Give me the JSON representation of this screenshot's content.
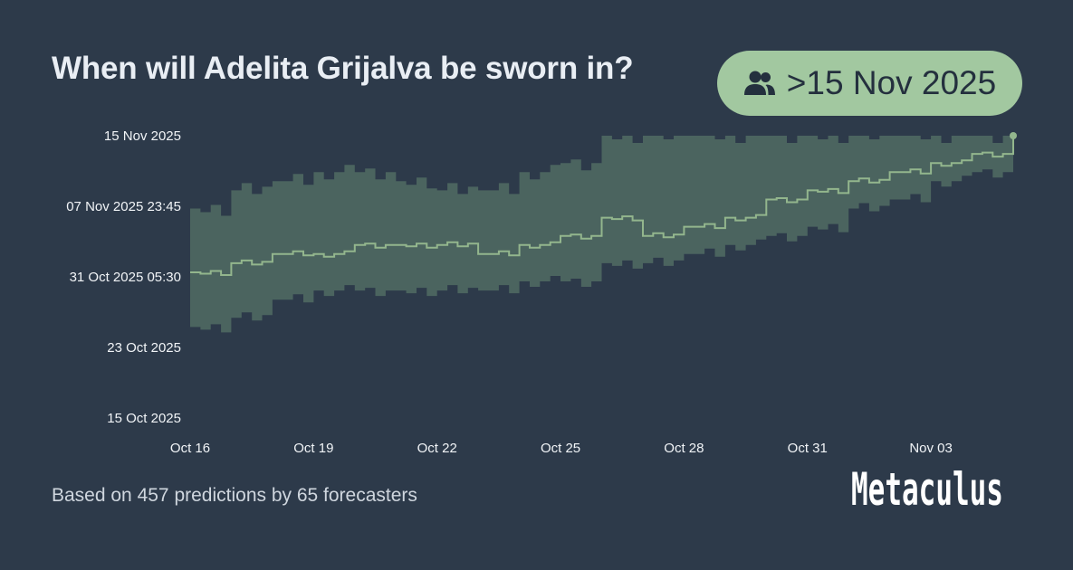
{
  "header": {
    "title": "When will Adelita Grijalva be sworn in?",
    "badge_text": ">15 Nov 2025",
    "badge_icon": "users-icon"
  },
  "footer": {
    "summary": "Based on 457 predictions by 65 forecasters",
    "brand": "Metaculus"
  },
  "colors": {
    "background": "#2d3a4a",
    "band": "#4d6660",
    "median_line": "#93b68d",
    "badge_bg": "#a2c8a0"
  },
  "chart_data": {
    "type": "area",
    "title": "",
    "xlabel": "",
    "ylabel": "",
    "x_ticks": [
      "Oct 16",
      "Oct 19",
      "Oct 22",
      "Oct 25",
      "Oct 28",
      "Oct 31",
      "Nov 03"
    ],
    "y_ticks": [
      "15 Oct 2025",
      "23 Oct 2025",
      "31 Oct 2025 05:30",
      "07 Nov 2025 23:45",
      "15 Nov 2025"
    ],
    "xlim": [
      "2025-10-16",
      "2025-11-05"
    ],
    "ylim": [
      "2025-10-15",
      "2025-11-15"
    ],
    "grid": false,
    "series": [
      {
        "role": "median",
        "points": [
          [
            "2025-10-16",
            "2025-10-31"
          ],
          [
            "2025-10-17",
            "2025-11-01"
          ],
          [
            "2025-10-18",
            "2025-11-02"
          ],
          [
            "2025-10-19",
            "2025-11-02"
          ],
          [
            "2025-10-20",
            "2025-11-03"
          ],
          [
            "2025-10-21",
            "2025-11-03"
          ],
          [
            "2025-10-22",
            "2025-11-03"
          ],
          [
            "2025-10-23",
            "2025-11-02"
          ],
          [
            "2025-10-24",
            "2025-11-03"
          ],
          [
            "2025-10-25",
            "2025-11-04"
          ],
          [
            "2025-10-26",
            "2025-11-06"
          ],
          [
            "2025-10-27",
            "2025-11-04"
          ],
          [
            "2025-10-28",
            "2025-11-05"
          ],
          [
            "2025-10-29",
            "2025-11-06"
          ],
          [
            "2025-10-30",
            "2025-11-08"
          ],
          [
            "2025-10-31",
            "2025-11-09"
          ],
          [
            "2025-11-01",
            "2025-11-10"
          ],
          [
            "2025-11-02",
            "2025-11-11"
          ],
          [
            "2025-11-03",
            "2025-11-12"
          ],
          [
            "2025-11-04",
            "2025-11-13"
          ],
          [
            "2025-11-05",
            "2025-11-15"
          ]
        ]
      },
      {
        "role": "upper-bound",
        "points": [
          [
            "2025-10-16",
            "2025-11-07"
          ],
          [
            "2025-10-17",
            "2025-11-09"
          ],
          [
            "2025-10-18",
            "2025-11-10"
          ],
          [
            "2025-10-19",
            "2025-11-11"
          ],
          [
            "2025-10-20",
            "2025-11-11"
          ],
          [
            "2025-10-21",
            "2025-11-10"
          ],
          [
            "2025-10-22",
            "2025-11-09"
          ],
          [
            "2025-10-23",
            "2025-11-09"
          ],
          [
            "2025-10-24",
            "2025-11-11"
          ],
          [
            "2025-10-25",
            "2025-11-12"
          ],
          [
            "2025-10-26",
            "2025-11-15"
          ],
          [
            "2025-10-27",
            "2025-11-15"
          ],
          [
            "2025-10-28",
            "2025-11-15"
          ],
          [
            "2025-10-29",
            "2025-11-15"
          ],
          [
            "2025-10-30",
            "2025-11-15"
          ],
          [
            "2025-10-31",
            "2025-11-15"
          ],
          [
            "2025-11-01",
            "2025-11-15"
          ],
          [
            "2025-11-02",
            "2025-11-15"
          ],
          [
            "2025-11-03",
            "2025-11-15"
          ],
          [
            "2025-11-04",
            "2025-11-15"
          ],
          [
            "2025-11-05",
            "2025-11-15"
          ]
        ]
      },
      {
        "role": "lower-bound",
        "points": [
          [
            "2025-10-16",
            "2025-10-25"
          ],
          [
            "2025-10-17",
            "2025-10-26"
          ],
          [
            "2025-10-18",
            "2025-10-28"
          ],
          [
            "2025-10-19",
            "2025-10-29"
          ],
          [
            "2025-10-20",
            "2025-10-29"
          ],
          [
            "2025-10-21",
            "2025-10-29"
          ],
          [
            "2025-10-22",
            "2025-10-29"
          ],
          [
            "2025-10-23",
            "2025-10-29"
          ],
          [
            "2025-10-24",
            "2025-10-30"
          ],
          [
            "2025-10-25",
            "2025-10-30"
          ],
          [
            "2025-10-26",
            "2025-11-01"
          ],
          [
            "2025-10-27",
            "2025-11-01"
          ],
          [
            "2025-10-28",
            "2025-11-02"
          ],
          [
            "2025-10-29",
            "2025-11-03"
          ],
          [
            "2025-10-30",
            "2025-11-04"
          ],
          [
            "2025-10-31",
            "2025-11-05"
          ],
          [
            "2025-11-01",
            "2025-11-07"
          ],
          [
            "2025-11-02",
            "2025-11-08"
          ],
          [
            "2025-11-03",
            "2025-11-10"
          ],
          [
            "2025-11-04",
            "2025-11-11"
          ],
          [
            "2025-11-05",
            "2025-11-12"
          ]
        ]
      }
    ]
  }
}
